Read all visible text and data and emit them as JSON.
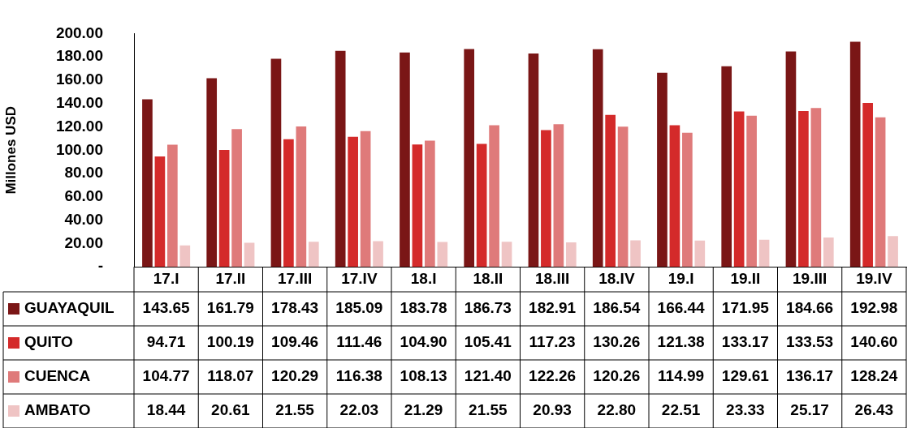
{
  "chart_data": {
    "type": "bar",
    "ylabel": "Millones USD",
    "categories": [
      "17.I",
      "17.II",
      "17.III",
      "17.IV",
      "18.I",
      "18.II",
      "18.III",
      "18.IV",
      "19.I",
      "19.II",
      "19.III",
      "19.IV"
    ],
    "series": [
      {
        "name": "GUAYAQUIL",
        "color": "#7a1616",
        "values": [
          143.65,
          161.79,
          178.43,
          185.09,
          183.78,
          186.73,
          182.91,
          186.54,
          166.44,
          171.95,
          184.66,
          192.98
        ],
        "value_labels": [
          "143.65",
          "161.79",
          "178.43",
          "185.09",
          "183.78",
          "186.73",
          "182.91",
          "186.54",
          "166.44",
          "171.95",
          "184.66",
          "192.98"
        ]
      },
      {
        "name": "QUITO",
        "color": "#d42a2a",
        "values": [
          94.71,
          100.19,
          109.46,
          111.46,
          104.9,
          105.41,
          117.23,
          130.26,
          121.38,
          133.17,
          133.53,
          140.6
        ],
        "value_labels": [
          "94.71",
          "100.19",
          "109.46",
          "111.46",
          "104.90",
          "105.41",
          "117.23",
          "130.26",
          "121.38",
          "133.17",
          "133.53",
          "140.60"
        ]
      },
      {
        "name": "CUENCA",
        "color": "#df7a7a",
        "values": [
          104.77,
          118.07,
          120.29,
          116.38,
          108.13,
          121.4,
          122.26,
          120.26,
          114.99,
          129.61,
          136.17,
          128.24
        ],
        "value_labels": [
          "104.77",
          "118.07",
          "120.29",
          "116.38",
          "108.13",
          "121.40",
          "122.26",
          "120.26",
          "114.99",
          "129.61",
          "136.17",
          "128.24"
        ]
      },
      {
        "name": "AMBATO",
        "color": "#efc4c4",
        "values": [
          18.44,
          20.61,
          21.55,
          22.03,
          21.29,
          21.55,
          20.93,
          22.8,
          22.51,
          23.33,
          25.17,
          26.43
        ],
        "value_labels": [
          "18.44",
          "20.61",
          "21.55",
          "22.03",
          "21.29",
          "21.55",
          "20.93",
          "22.80",
          "22.51",
          "23.33",
          "25.17",
          "26.43"
        ]
      }
    ],
    "ylim": [
      0,
      200
    ],
    "yticks": [
      {
        "value": 0,
        "label": "-"
      },
      {
        "value": 20,
        "label": "20.00"
      },
      {
        "value": 40,
        "label": "40.00"
      },
      {
        "value": 60,
        "label": "60.00"
      },
      {
        "value": 80,
        "label": "80.00"
      },
      {
        "value": 100,
        "label": "100.00"
      },
      {
        "value": 120,
        "label": "120.00"
      },
      {
        "value": 140,
        "label": "140.00"
      },
      {
        "value": 160,
        "label": "160.00"
      },
      {
        "value": 180,
        "label": "180.00"
      },
      {
        "value": 200,
        "label": "200.00"
      }
    ],
    "grid": false,
    "legend": "bottom left"
  }
}
